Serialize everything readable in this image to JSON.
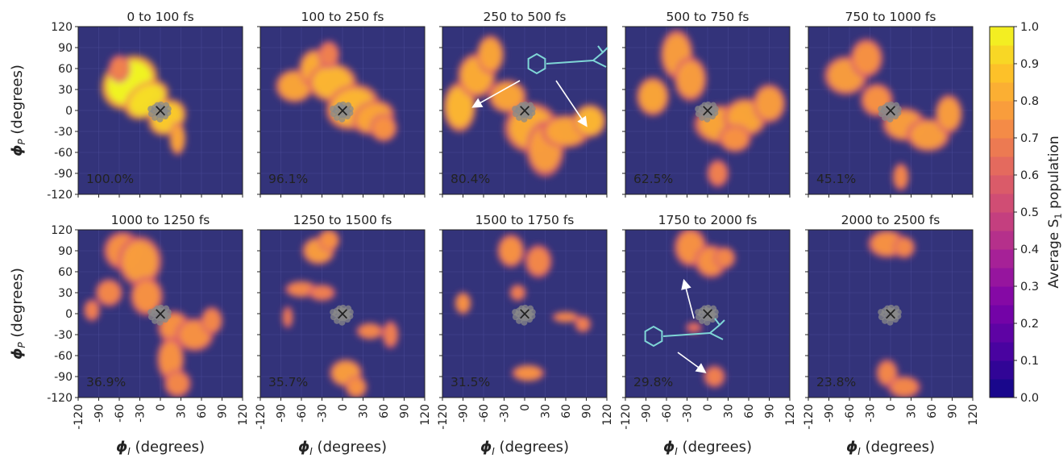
{
  "chart_data": {
    "type": "heatmap",
    "panels": [
      {
        "title": "0 to 100 fs",
        "percent": "100.0%",
        "blobs": [
          [
            -45,
            40,
            22,
            18,
            1.0,
            -40
          ],
          [
            -20,
            15,
            18,
            12,
            0.95,
            -35
          ],
          [
            10,
            -10,
            15,
            12,
            0.9,
            -40
          ],
          [
            25,
            -40,
            6,
            12,
            0.8,
            0
          ],
          [
            -60,
            60,
            8,
            10,
            0.7,
            0
          ]
        ]
      },
      {
        "title": "100 to 250 fs",
        "percent": "96.1%",
        "blobs": [
          [
            -70,
            35,
            14,
            12,
            0.8,
            0
          ],
          [
            -40,
            60,
            12,
            14,
            0.82,
            0
          ],
          [
            -15,
            40,
            18,
            14,
            0.85,
            0
          ],
          [
            15,
            5,
            20,
            16,
            0.85,
            -20
          ],
          [
            45,
            -10,
            16,
            12,
            0.8,
            -20
          ],
          [
            60,
            -25,
            10,
            10,
            0.75,
            0
          ],
          [
            -20,
            80,
            8,
            10,
            0.7,
            0
          ]
        ]
      },
      {
        "title": "250 to 500 fs",
        "percent": "80.4%",
        "blobs": [
          [
            -95,
            5,
            12,
            18,
            0.85,
            0
          ],
          [
            -70,
            50,
            14,
            16,
            0.82,
            0
          ],
          [
            -50,
            80,
            10,
            14,
            0.8,
            0
          ],
          [
            -25,
            20,
            14,
            12,
            0.8,
            0
          ],
          [
            10,
            -25,
            20,
            18,
            0.82,
            0
          ],
          [
            30,
            -55,
            14,
            20,
            0.78,
            0
          ],
          [
            60,
            -30,
            18,
            12,
            0.8,
            0
          ],
          [
            95,
            -15,
            12,
            12,
            0.85,
            0
          ]
        ]
      },
      {
        "title": "500 to 750 fs",
        "percent": "62.5%",
        "blobs": [
          [
            -80,
            20,
            12,
            14,
            0.8,
            0
          ],
          [
            -45,
            80,
            12,
            18,
            0.78,
            0
          ],
          [
            -25,
            45,
            12,
            16,
            0.78,
            0
          ],
          [
            20,
            -20,
            20,
            14,
            0.8,
            0
          ],
          [
            55,
            -10,
            16,
            14,
            0.8,
            0
          ],
          [
            90,
            10,
            12,
            14,
            0.78,
            0
          ],
          [
            40,
            -40,
            12,
            10,
            0.75,
            0
          ],
          [
            15,
            -90,
            8,
            10,
            0.7,
            0
          ]
        ]
      },
      {
        "title": "750 to 1000 fs",
        "percent": "45.1%",
        "blobs": [
          [
            -65,
            50,
            16,
            14,
            0.78,
            0
          ],
          [
            -35,
            75,
            12,
            14,
            0.75,
            0
          ],
          [
            -20,
            15,
            12,
            12,
            0.75,
            0
          ],
          [
            20,
            -20,
            16,
            12,
            0.78,
            0
          ],
          [
            55,
            -35,
            16,
            12,
            0.78,
            0
          ],
          [
            85,
            -5,
            10,
            14,
            0.78,
            0
          ],
          [
            15,
            -95,
            6,
            10,
            0.72,
            0
          ]
        ]
      },
      {
        "title": "1000 to 1250 fs",
        "percent": "36.9%",
        "blobs": [
          [
            -55,
            90,
            14,
            14,
            0.75,
            0
          ],
          [
            -30,
            75,
            16,
            18,
            0.78,
            0
          ],
          [
            -75,
            30,
            10,
            10,
            0.72,
            0
          ],
          [
            -20,
            25,
            12,
            14,
            0.75,
            0
          ],
          [
            20,
            -20,
            12,
            12,
            0.75,
            0
          ],
          [
            50,
            -30,
            14,
            12,
            0.75,
            0
          ],
          [
            75,
            -10,
            8,
            10,
            0.72,
            0
          ],
          [
            15,
            -65,
            10,
            16,
            0.75,
            0
          ],
          [
            25,
            -100,
            10,
            10,
            0.72,
            0
          ],
          [
            -100,
            5,
            6,
            8,
            0.7,
            0
          ]
        ]
      },
      {
        "title": "1250 to 1500 fs",
        "percent": "35.7%",
        "blobs": [
          [
            -35,
            90,
            12,
            10,
            0.78,
            0
          ],
          [
            -20,
            105,
            8,
            8,
            0.75,
            0
          ],
          [
            -60,
            35,
            12,
            6,
            0.72,
            0
          ],
          [
            -30,
            30,
            10,
            6,
            0.7,
            0
          ],
          [
            -80,
            -5,
            4,
            8,
            0.68,
            0
          ],
          [
            40,
            -25,
            10,
            6,
            0.72,
            0
          ],
          [
            70,
            -30,
            6,
            10,
            0.7,
            0
          ],
          [
            5,
            -85,
            12,
            10,
            0.78,
            0
          ],
          [
            20,
            -105,
            8,
            8,
            0.75,
            0
          ]
        ]
      },
      {
        "title": "1500 to 1750 fs",
        "percent": "31.5%",
        "blobs": [
          [
            -90,
            15,
            6,
            8,
            0.75,
            0
          ],
          [
            -20,
            90,
            10,
            12,
            0.75,
            0
          ],
          [
            20,
            75,
            10,
            12,
            0.72,
            0
          ],
          [
            -10,
            30,
            6,
            6,
            0.7,
            0
          ],
          [
            60,
            -5,
            10,
            4,
            0.72,
            0
          ],
          [
            85,
            -15,
            6,
            6,
            0.7,
            0
          ],
          [
            5,
            -85,
            12,
            6,
            0.75,
            0
          ]
        ]
      },
      {
        "title": "1750 to 2000 fs",
        "percent": "29.8%",
        "blobs": [
          [
            -25,
            95,
            12,
            14,
            0.75,
            0
          ],
          [
            5,
            75,
            12,
            12,
            0.75,
            0
          ],
          [
            25,
            80,
            8,
            8,
            0.72,
            0
          ],
          [
            10,
            -90,
            8,
            8,
            0.7,
            0
          ],
          [
            -20,
            -20,
            6,
            4,
            0.65,
            0
          ]
        ]
      },
      {
        "title": "2000 to 2500 fs",
        "percent": "23.8%",
        "blobs": [
          [
            -5,
            100,
            14,
            10,
            0.75,
            0
          ],
          [
            20,
            95,
            8,
            8,
            0.72,
            0
          ],
          [
            -5,
            -85,
            8,
            10,
            0.72,
            0
          ],
          [
            20,
            -105,
            12,
            8,
            0.72,
            0
          ]
        ]
      }
    ],
    "x": {
      "label": "ϕI (degrees)",
      "label_main": "ϕ",
      "label_sub": "I",
      "label_rest": " (degrees)",
      "range": [
        -120,
        120
      ],
      "ticks": [
        -120,
        -90,
        -60,
        -30,
        0,
        30,
        60,
        90,
        120
      ],
      "tick_labels": [
        "-120",
        "-90",
        "-60",
        "-30",
        "0",
        "30",
        "60",
        "90",
        "120"
      ]
    },
    "y": {
      "label": "ϕP (degrees)",
      "label_main": "ϕ",
      "label_sub": "P",
      "label_rest": " (degrees)",
      "range": [
        -120,
        120
      ],
      "ticks": [
        -120,
        -90,
        -60,
        -30,
        0,
        30,
        60,
        90,
        120
      ],
      "tick_labels": [
        "-120",
        "-90",
        "-60",
        "-30",
        "0",
        "30",
        "60",
        "90",
        "120"
      ]
    },
    "colorbar": {
      "label": "Average S1 population",
      "label_pre": "Average S",
      "label_sub": "1",
      "label_post": " population",
      "range": [
        0,
        1
      ],
      "ticks": [
        "0.0",
        "0.1",
        "0.2",
        "0.3",
        "0.4",
        "0.5",
        "0.6",
        "0.7",
        "0.8",
        "0.9",
        "1.0"
      ]
    },
    "marker": "×",
    "colors": {
      "background": "#33337a",
      "plasma_low": "#3b2f87",
      "plasma_mid": "#e0577b",
      "plasma_high": "#f0f050"
    },
    "grid": true
  }
}
